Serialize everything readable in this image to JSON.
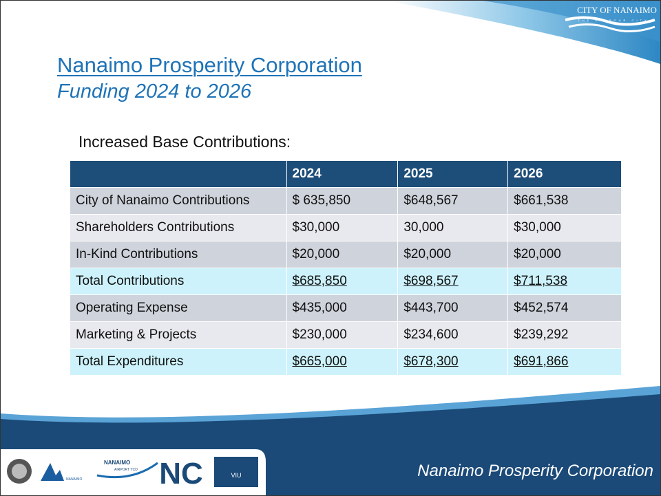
{
  "header": {
    "title": "Nanaimo Prosperity Corporation",
    "subtitle": "Funding 2024 to 2026"
  },
  "section_label": "Increased Base Contributions:",
  "table": {
    "columns": [
      "2024",
      "2025",
      "2026"
    ],
    "rows": [
      {
        "label": "City of Nanaimo Contributions",
        "cells": [
          "$ 635,850",
          "$648,567",
          "$661,538"
        ],
        "style": "band-dark"
      },
      {
        "label": "Shareholders Contributions",
        "cells": [
          "$30,000",
          "30,000",
          "$30,000"
        ],
        "style": "band-light"
      },
      {
        "label": "In-Kind Contributions",
        "cells": [
          "$20,000",
          "$20,000",
          "$20,000"
        ],
        "style": "band-dark"
      },
      {
        "label": "Total Contributions",
        "cells": [
          "$685,850",
          "$698,567",
          "$711,538"
        ],
        "style": "total"
      },
      {
        "label": "Operating Expense",
        "cells": [
          "$435,000",
          "$443,700",
          "$452,574"
        ],
        "style": "band-dark"
      },
      {
        "label": "Marketing & Projects",
        "cells": [
          "$230,000",
          "$234,600",
          "$239,292"
        ],
        "style": "band-light"
      },
      {
        "label": "Total Expenditures",
        "cells": [
          "$665,000",
          "$678,300",
          "$691,866"
        ],
        "style": "total"
      }
    ]
  },
  "logos": {
    "city": "CITY OF NANAIMO",
    "city_tagline": "THE HARBOUR CITY",
    "airport": "NANAIMO",
    "airport_sub": "AIRPORT YCD",
    "port": "NANAIMO",
    "viu": "VIU"
  },
  "footer": "Nanaimo Prosperity Corporation"
}
